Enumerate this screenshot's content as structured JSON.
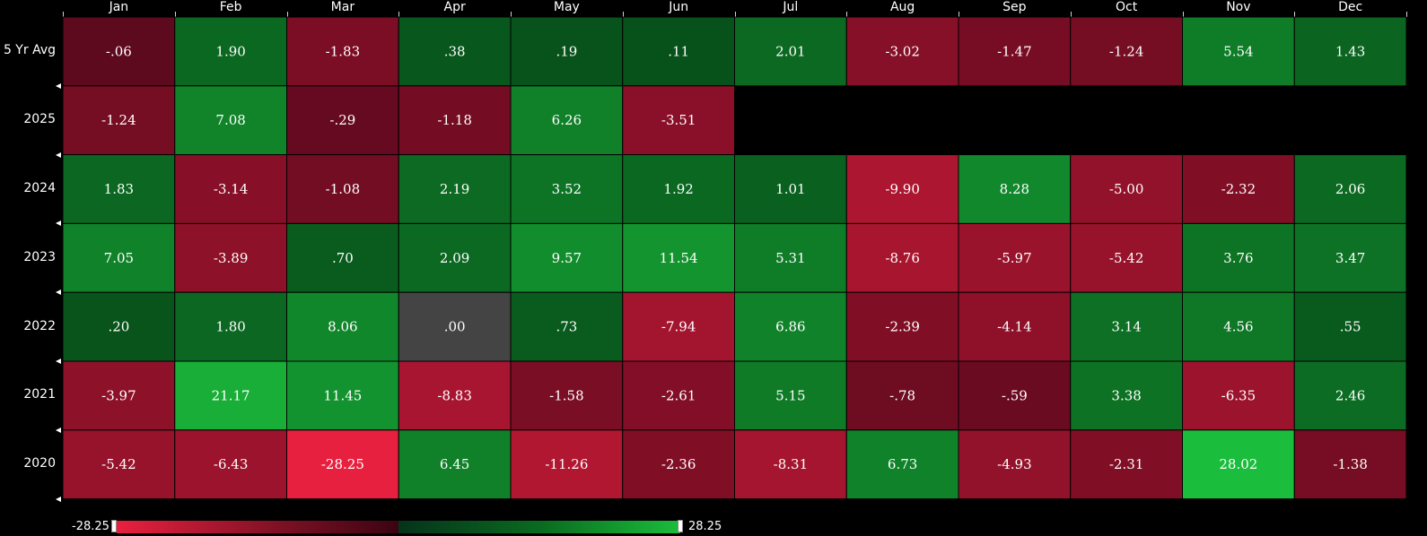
{
  "chart_data": {
    "type": "heatmap",
    "columns": [
      "Jan",
      "Feb",
      "Mar",
      "Apr",
      "May",
      "Jun",
      "Jul",
      "Aug",
      "Sep",
      "Oct",
      "Nov",
      "Dec"
    ],
    "rows": [
      {
        "label": "5 Yr Avg",
        "values": [
          "-.06",
          "1.90",
          "-1.83",
          ".38",
          ".19",
          ".11",
          "2.01",
          "-3.02",
          "-1.47",
          "-1.24",
          "5.54",
          "1.43"
        ]
      },
      {
        "label": "2025",
        "values": [
          "-1.24",
          "7.08",
          "-.29",
          "-1.18",
          "6.26",
          "-3.51",
          null,
          null,
          null,
          null,
          null,
          null
        ]
      },
      {
        "label": "2024",
        "values": [
          "1.83",
          "-3.14",
          "-1.08",
          "2.19",
          "3.52",
          "1.92",
          "1.01",
          "-9.90",
          "8.28",
          "-5.00",
          "-2.32",
          "2.06"
        ]
      },
      {
        "label": "2023",
        "values": [
          "7.05",
          "-3.89",
          ".70",
          "2.09",
          "9.57",
          "11.54",
          "5.31",
          "-8.76",
          "-5.97",
          "-5.42",
          "3.76",
          "3.47"
        ]
      },
      {
        "label": "2022",
        "values": [
          ".20",
          "1.80",
          "8.06",
          ".00",
          ".73",
          "-7.94",
          "6.86",
          "-2.39",
          "-4.14",
          "3.14",
          "4.56",
          ".55"
        ]
      },
      {
        "label": "2021",
        "values": [
          "-3.97",
          "21.17",
          "11.45",
          "-8.83",
          "-1.58",
          "-2.61",
          "5.15",
          "-.78",
          "-.59",
          "3.38",
          "-6.35",
          "2.46"
        ]
      },
      {
        "label": "2020",
        "values": [
          "-5.42",
          "-6.43",
          "-28.25",
          "6.45",
          "-11.26",
          "-2.36",
          "-8.31",
          "6.73",
          "-4.93",
          "-2.31",
          "28.02",
          "-1.38"
        ]
      }
    ],
    "color_scale": {
      "min": -28.25,
      "max": 28.25,
      "min_label": "-28.25",
      "max_label": "28.25",
      "neg_strong": "#e8203f",
      "neg_weak": "#56081c",
      "zero": "#444444",
      "pos_weak": "#064a18",
      "pos_strong": "#1bbd3c"
    }
  }
}
